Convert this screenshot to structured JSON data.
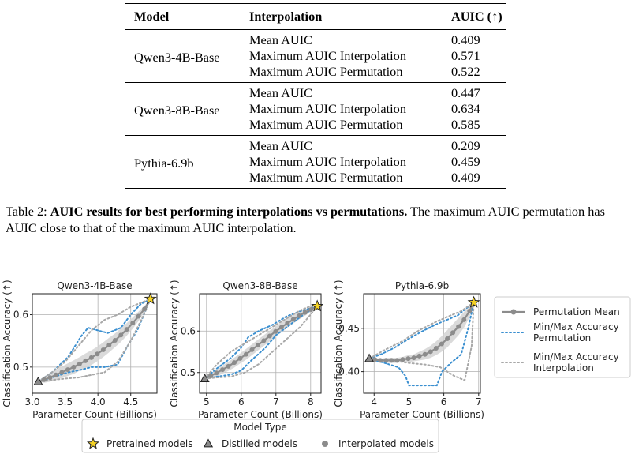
{
  "table": {
    "headers": {
      "model": "Model",
      "interpolation": "Interpolation",
      "auic": "AUIC (↑)"
    },
    "groups": [
      {
        "model": "Qwen3-4B-Base",
        "rows": [
          {
            "interpolation": "Mean AUIC",
            "auic": "0.409"
          },
          {
            "interpolation": "Maximum AUIC Interpolation",
            "auic": "0.571"
          },
          {
            "interpolation": "Maximum AUIC Permutation",
            "auic": "0.522"
          }
        ]
      },
      {
        "model": "Qwen3-8B-Base",
        "rows": [
          {
            "interpolation": "Mean AUIC",
            "auic": "0.447"
          },
          {
            "interpolation": "Maximum AUIC Interpolation",
            "auic": "0.634"
          },
          {
            "interpolation": "Maximum AUIC Permutation",
            "auic": "0.585"
          }
        ]
      },
      {
        "model": "Pythia-6.9b",
        "rows": [
          {
            "interpolation": "Mean AUIC",
            "auic": "0.209"
          },
          {
            "interpolation": "Maximum AUIC Interpolation",
            "auic": "0.459"
          },
          {
            "interpolation": "Maximum AUIC Permutation",
            "auic": "0.409"
          }
        ]
      }
    ]
  },
  "caption": {
    "label": "Table 2:",
    "bold": "AUIC results for best performing interpolations vs permutations.",
    "rest": "The maximum AUIC permutation has AUIC close to that of the maximum AUIC interpolation."
  },
  "figure": {
    "ylabel": "Classification Accuracy (↑)",
    "xlabel": "Parameter Count (Billions)",
    "legend_right": [
      {
        "label": "Permutation Mean",
        "style": "mean"
      },
      {
        "label": "Min/Max Accuracy\nPermutation",
        "style": "perm"
      },
      {
        "label": "Min/Max Accuracy\nInterpolation",
        "style": "interp"
      }
    ],
    "legend_bottom": {
      "title": "Model Type",
      "items": [
        {
          "label": "Pretrained models",
          "marker": "star"
        },
        {
          "label": "Distilled models",
          "marker": "triangle"
        },
        {
          "label": "Interpolated models",
          "marker": "circle"
        }
      ]
    },
    "colors": {
      "mean": "#8c8c8c",
      "band": "#d4d4d4",
      "perm": "#3a8fd0",
      "interp": "#a8a8a8",
      "star": "#f5d326",
      "grid": "#b0b0b0"
    }
  },
  "chart_data": [
    {
      "type": "line",
      "title": "Qwen3-4B-Base",
      "xlabel": "Parameter Count (Billions)",
      "ylabel": "Classification Accuracy (↑)",
      "xlim": [
        3.0,
        4.9
      ],
      "ylim": [
        0.45,
        0.64
      ],
      "xticks": [
        "3.0",
        "3.5",
        "4.0",
        "4.5"
      ],
      "yticks": [
        "0.5",
        "0.6"
      ],
      "grid": true,
      "series": [
        {
          "name": "Permutation Mean",
          "x": [
            3.09,
            3.18,
            3.27,
            3.36,
            3.45,
            3.54,
            3.63,
            3.72,
            3.81,
            3.9,
            3.99,
            4.08,
            4.17,
            4.26,
            4.35,
            4.44,
            4.53,
            4.62,
            4.71,
            4.8
          ],
          "y": [
            0.472,
            0.476,
            0.48,
            0.485,
            0.49,
            0.495,
            0.5,
            0.506,
            0.512,
            0.518,
            0.525,
            0.533,
            0.542,
            0.551,
            0.561,
            0.572,
            0.584,
            0.597,
            0.611,
            0.63
          ]
        },
        {
          "name": "Permutation Max",
          "x": [
            3.09,
            3.3,
            3.55,
            3.75,
            3.85,
            4.0,
            4.15,
            4.35,
            4.5,
            4.65,
            4.8
          ],
          "y": [
            0.472,
            0.49,
            0.52,
            0.56,
            0.575,
            0.57,
            0.565,
            0.575,
            0.6,
            0.62,
            0.63
          ]
        },
        {
          "name": "Permutation Min",
          "x": [
            3.09,
            3.3,
            3.55,
            3.75,
            3.9,
            4.1,
            4.3,
            4.45,
            4.6,
            4.7,
            4.8
          ],
          "y": [
            0.472,
            0.48,
            0.49,
            0.495,
            0.5,
            0.5,
            0.505,
            0.54,
            0.57,
            0.6,
            0.63
          ]
        },
        {
          "name": "Interpolation Max",
          "x": [
            3.09,
            3.3,
            3.5,
            3.7,
            3.9,
            4.1,
            4.3,
            4.5,
            4.7,
            4.8
          ],
          "y": [
            0.472,
            0.49,
            0.51,
            0.54,
            0.57,
            0.59,
            0.6,
            0.615,
            0.625,
            0.63
          ]
        },
        {
          "name": "Interpolation Min",
          "x": [
            3.09,
            3.3,
            3.5,
            3.7,
            3.9,
            4.1,
            4.3,
            4.5,
            4.7,
            4.8
          ],
          "y": [
            0.472,
            0.475,
            0.478,
            0.48,
            0.485,
            0.49,
            0.51,
            0.55,
            0.6,
            0.63
          ]
        }
      ],
      "band_halfwidth": [
        0.0,
        0.006,
        0.008,
        0.01,
        0.011,
        0.012,
        0.013,
        0.013,
        0.014,
        0.014,
        0.014,
        0.014,
        0.014,
        0.013,
        0.013,
        0.012,
        0.011,
        0.009,
        0.006,
        0.0
      ],
      "pretrained": {
        "x": 4.8,
        "y": 0.63
      },
      "distilled": {
        "x": 3.09,
        "y": 0.472
      }
    },
    {
      "type": "line",
      "title": "Qwen3-8B-Base",
      "xlabel": "Parameter Count (Billions)",
      "ylabel": "Classification Accuracy (↑)",
      "xlim": [
        4.8,
        8.3
      ],
      "ylim": [
        0.45,
        0.69
      ],
      "xticks": [
        "5",
        "6",
        "7",
        "8"
      ],
      "yticks": [
        "0.5",
        "0.6"
      ],
      "grid": true,
      "series": [
        {
          "name": "Permutation Mean",
          "x": [
            4.95,
            5.12,
            5.29,
            5.46,
            5.63,
            5.8,
            5.97,
            6.14,
            6.31,
            6.48,
            6.65,
            6.82,
            6.99,
            7.16,
            7.33,
            7.5,
            7.67,
            7.84,
            8.01,
            8.19
          ],
          "y": [
            0.485,
            0.492,
            0.499,
            0.507,
            0.515,
            0.524,
            0.534,
            0.544,
            0.555,
            0.566,
            0.577,
            0.588,
            0.599,
            0.609,
            0.619,
            0.628,
            0.637,
            0.645,
            0.652,
            0.66
          ]
        },
        {
          "name": "Permutation Max",
          "x": [
            4.95,
            5.3,
            5.7,
            6.0,
            6.2,
            6.5,
            6.9,
            7.3,
            7.7,
            8.0,
            8.19
          ],
          "y": [
            0.485,
            0.51,
            0.535,
            0.56,
            0.585,
            0.6,
            0.615,
            0.635,
            0.648,
            0.655,
            0.66
          ]
        },
        {
          "name": "Permutation Min",
          "x": [
            4.95,
            5.3,
            5.7,
            6.0,
            6.3,
            6.7,
            7.0,
            7.4,
            7.8,
            8.19
          ],
          "y": [
            0.485,
            0.49,
            0.495,
            0.505,
            0.53,
            0.56,
            0.59,
            0.615,
            0.64,
            0.66
          ]
        },
        {
          "name": "Interpolation Max",
          "x": [
            4.95,
            5.3,
            5.7,
            6.1,
            6.5,
            6.9,
            7.3,
            7.7,
            8.0,
            8.19
          ],
          "y": [
            0.485,
            0.52,
            0.55,
            0.57,
            0.59,
            0.61,
            0.63,
            0.65,
            0.66,
            0.66
          ]
        },
        {
          "name": "Interpolation Min",
          "x": [
            4.95,
            5.3,
            5.7,
            6.1,
            6.5,
            6.9,
            7.3,
            7.7,
            8.0,
            8.19
          ],
          "y": [
            0.485,
            0.488,
            0.49,
            0.5,
            0.52,
            0.55,
            0.58,
            0.61,
            0.64,
            0.66
          ]
        }
      ],
      "band_halfwidth": [
        0.0,
        0.006,
        0.008,
        0.01,
        0.011,
        0.012,
        0.012,
        0.013,
        0.013,
        0.013,
        0.013,
        0.013,
        0.012,
        0.012,
        0.011,
        0.01,
        0.009,
        0.008,
        0.005,
        0.0
      ],
      "pretrained": {
        "x": 8.19,
        "y": 0.66
      },
      "distilled": {
        "x": 4.95,
        "y": 0.485
      }
    },
    {
      "type": "line",
      "title": "Pythia-6.9b",
      "xlabel": "Parameter Count (Billions)",
      "ylabel": "Classification Accuracy (↑)",
      "xlim": [
        3.7,
        7.05
      ],
      "ylim": [
        0.375,
        0.49
      ],
      "xticks": [
        "4",
        "5",
        "6",
        "7"
      ],
      "yticks": [
        "0.40",
        "0.45"
      ],
      "grid": true,
      "series": [
        {
          "name": "Permutation Mean",
          "x": [
            3.86,
            4.02,
            4.18,
            4.34,
            4.5,
            4.66,
            4.82,
            4.98,
            5.14,
            5.3,
            5.46,
            5.62,
            5.78,
            5.94,
            6.1,
            6.26,
            6.42,
            6.58,
            6.74,
            6.86
          ],
          "y": [
            0.415,
            0.414,
            0.413,
            0.413,
            0.413,
            0.413,
            0.414,
            0.415,
            0.416,
            0.418,
            0.42,
            0.423,
            0.427,
            0.432,
            0.438,
            0.445,
            0.452,
            0.46,
            0.47,
            0.48
          ]
        },
        {
          "name": "Permutation Max",
          "x": [
            3.86,
            4.2,
            4.6,
            5.0,
            5.4,
            5.8,
            6.1,
            6.4,
            6.7,
            6.86
          ],
          "y": [
            0.415,
            0.42,
            0.428,
            0.438,
            0.447,
            0.455,
            0.46,
            0.465,
            0.475,
            0.48
          ]
        },
        {
          "name": "Permutation Min",
          "x": [
            3.86,
            4.3,
            4.7,
            4.9,
            5.0,
            5.5,
            5.8,
            5.95,
            6.2,
            6.5,
            6.7,
            6.86
          ],
          "y": [
            0.415,
            0.41,
            0.405,
            0.395,
            0.384,
            0.384,
            0.384,
            0.4,
            0.41,
            0.42,
            0.45,
            0.48
          ]
        },
        {
          "name": "Interpolation Max",
          "x": [
            3.86,
            4.3,
            4.8,
            5.3,
            5.8,
            6.2,
            6.5,
            6.86
          ],
          "y": [
            0.415,
            0.425,
            0.435,
            0.448,
            0.458,
            0.465,
            0.47,
            0.48
          ]
        },
        {
          "name": "Interpolation Min",
          "x": [
            3.86,
            4.5,
            5.0,
            5.5,
            5.9,
            6.3,
            6.6,
            6.8,
            6.86
          ],
          "y": [
            0.415,
            0.413,
            0.41,
            0.408,
            0.405,
            0.395,
            0.39,
            0.43,
            0.48
          ]
        }
      ],
      "band_halfwidth": [
        0.0,
        0.002,
        0.002,
        0.003,
        0.003,
        0.003,
        0.003,
        0.004,
        0.004,
        0.005,
        0.006,
        0.007,
        0.008,
        0.009,
        0.01,
        0.01,
        0.01,
        0.009,
        0.007,
        0.0
      ],
      "pretrained": {
        "x": 6.86,
        "y": 0.48
      },
      "distilled": {
        "x": 3.86,
        "y": 0.415
      }
    }
  ]
}
